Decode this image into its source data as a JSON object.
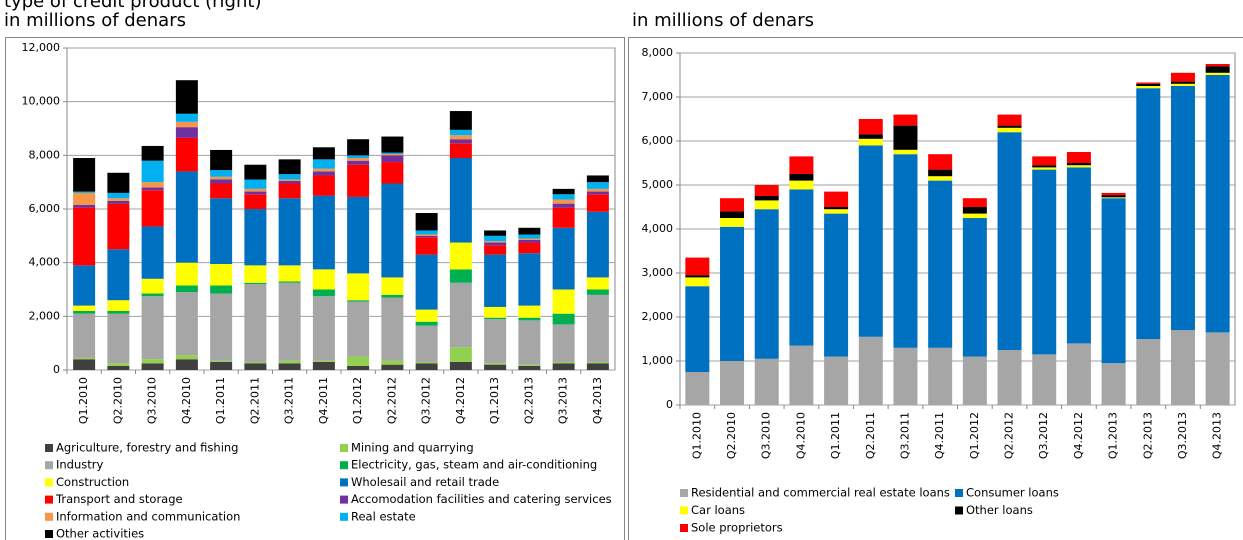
{
  "heading": "type of credit product (right)",
  "chart_data": [
    {
      "type": "bar",
      "stacked": true,
      "subtitle": "in millions of denars",
      "categories": [
        "Q1.2010",
        "Q2.2010",
        "Q3.2010",
        "Q4.2010",
        "Q1.2011",
        "Q2.2011",
        "Q3.2011",
        "Q4.2011",
        "Q1.2012",
        "Q2.2012",
        "Q3.2012",
        "Q4.2012",
        "Q1.2013",
        "Q2.2013",
        "Q3.2013",
        "Q4.2013"
      ],
      "ylim": [
        0,
        12000
      ],
      "yticks": [
        0,
        {
          "value": 2000,
          "label": "2,000"
        },
        {
          "value": 4000,
          "label": "4,000"
        },
        {
          "value": 6000,
          "label": "6,000"
        },
        {
          "value": 8000,
          "label": "8,000"
        },
        {
          "value": 10000,
          "label": "10,000"
        },
        {
          "value": 12000,
          "label": "12,000"
        }
      ],
      "grid": true,
      "legend": "bottom",
      "series": [
        {
          "name": "Agriculture, forestry and fishing",
          "color": "#404040",
          "values": [
            400,
            150,
            250,
            400,
            300,
            250,
            250,
            300,
            150,
            200,
            250,
            300,
            200,
            150,
            250,
            250
          ]
        },
        {
          "name": "Mining and quarrying",
          "color": "#92d050",
          "values": [
            50,
            100,
            150,
            150,
            50,
            50,
            100,
            50,
            350,
            150,
            50,
            550,
            50,
            50,
            50,
            50
          ]
        },
        {
          "name": "Industry",
          "color": "#a6a6a6",
          "values": [
            1650,
            1850,
            2350,
            2350,
            2500,
            2900,
            2900,
            2400,
            2050,
            2350,
            1350,
            2400,
            1650,
            1650,
            1400,
            2500
          ]
        },
        {
          "name": "Electricity, gas, steam and air-conditioning",
          "color": "#00b050",
          "values": [
            100,
            100,
            100,
            250,
            300,
            50,
            50,
            250,
            50,
            100,
            150,
            500,
            50,
            100,
            400,
            200
          ]
        },
        {
          "name": "Construction",
          "color": "#ffff00",
          "values": [
            200,
            400,
            550,
            850,
            800,
            650,
            600,
            750,
            1000,
            650,
            450,
            1000,
            400,
            450,
            900,
            450
          ]
        },
        {
          "name": "Wholesail and retail trade",
          "color": "#0070c0",
          "values": [
            1500,
            1900,
            1950,
            3400,
            2450,
            2100,
            2500,
            2750,
            2850,
            3500,
            2050,
            3150,
            1950,
            1950,
            2300,
            2450
          ]
        },
        {
          "name": "Transport and storage",
          "color": "#ff0000",
          "values": [
            2150,
            1700,
            1350,
            1250,
            550,
            550,
            550,
            750,
            1200,
            800,
            650,
            550,
            350,
            400,
            750,
            650
          ]
        },
        {
          "name": "Accomodation facilities and catering services",
          "color": "#7030a0",
          "values": [
            100,
            100,
            100,
            400,
            150,
            100,
            100,
            150,
            150,
            250,
            50,
            150,
            100,
            100,
            150,
            100
          ]
        },
        {
          "name": "Information and communication",
          "color": "#f79646",
          "values": [
            450,
            100,
            200,
            200,
            100,
            100,
            50,
            100,
            100,
            50,
            50,
            150,
            50,
            50,
            150,
            100
          ]
        },
        {
          "name": "Real estate",
          "color": "#00b0f0",
          "values": [
            50,
            200,
            800,
            300,
            250,
            350,
            200,
            350,
            100,
            50,
            150,
            200,
            200,
            150,
            200,
            250
          ]
        },
        {
          "name": "Other activities",
          "color": "#000000",
          "values": [
            1250,
            750,
            550,
            1250,
            750,
            550,
            550,
            450,
            600,
            600,
            650,
            700,
            200,
            250,
            200,
            250
          ]
        }
      ]
    },
    {
      "type": "bar",
      "stacked": true,
      "subtitle": "in millions of denars",
      "categories": [
        "Q1.2010",
        "Q2.2010",
        "Q3.2010",
        "Q4.2010",
        "Q1.2011",
        "Q2.2011",
        "Q3.2011",
        "Q4.2011",
        "Q1.2012",
        "Q2.2012",
        "Q3.2012",
        "Q4.2012",
        "Q1.2013",
        "Q2.2013",
        "Q3.2013",
        "Q4.2013"
      ],
      "ylim": [
        0,
        8000
      ],
      "yticks": [
        0,
        {
          "value": 1000,
          "label": "1,000"
        },
        {
          "value": 2000,
          "label": "2,000"
        },
        {
          "value": 3000,
          "label": "3,000"
        },
        {
          "value": 4000,
          "label": "4,000"
        },
        {
          "value": 5000,
          "label": "5,000"
        },
        {
          "value": 6000,
          "label": "6,000"
        },
        {
          "value": 7000,
          "label": "7,000"
        },
        {
          "value": 8000,
          "label": "8,000"
        }
      ],
      "grid": true,
      "legend": "bottom",
      "series": [
        {
          "name": "Residential and commercial real estate loans",
          "color": "#a6a6a6",
          "values": [
            750,
            1000,
            1050,
            1350,
            1100,
            1550,
            1300,
            1300,
            1100,
            1250,
            1150,
            1400,
            950,
            1500,
            1700,
            1650
          ]
        },
        {
          "name": "Consumer loans",
          "color": "#0070c0",
          "values": [
            1950,
            3050,
            3400,
            3550,
            3250,
            4350,
            4400,
            3800,
            3150,
            4950,
            4200,
            4000,
            3750,
            5700,
            5550,
            5850
          ]
        },
        {
          "name": "Car loans",
          "color": "#ffff00",
          "values": [
            200,
            200,
            200,
            200,
            100,
            150,
            100,
            100,
            100,
            100,
            50,
            50,
            20,
            50,
            50,
            50
          ]
        },
        {
          "name": "Other loans",
          "color": "#000000",
          "values": [
            50,
            150,
            100,
            150,
            50,
            100,
            550,
            150,
            150,
            50,
            50,
            50,
            50,
            50,
            50,
            150
          ]
        },
        {
          "name": "Sole proprietors",
          "color": "#ff0000",
          "values": [
            400,
            300,
            250,
            400,
            350,
            350,
            250,
            350,
            200,
            250,
            200,
            250,
            50,
            30,
            200,
            50
          ]
        }
      ]
    }
  ]
}
